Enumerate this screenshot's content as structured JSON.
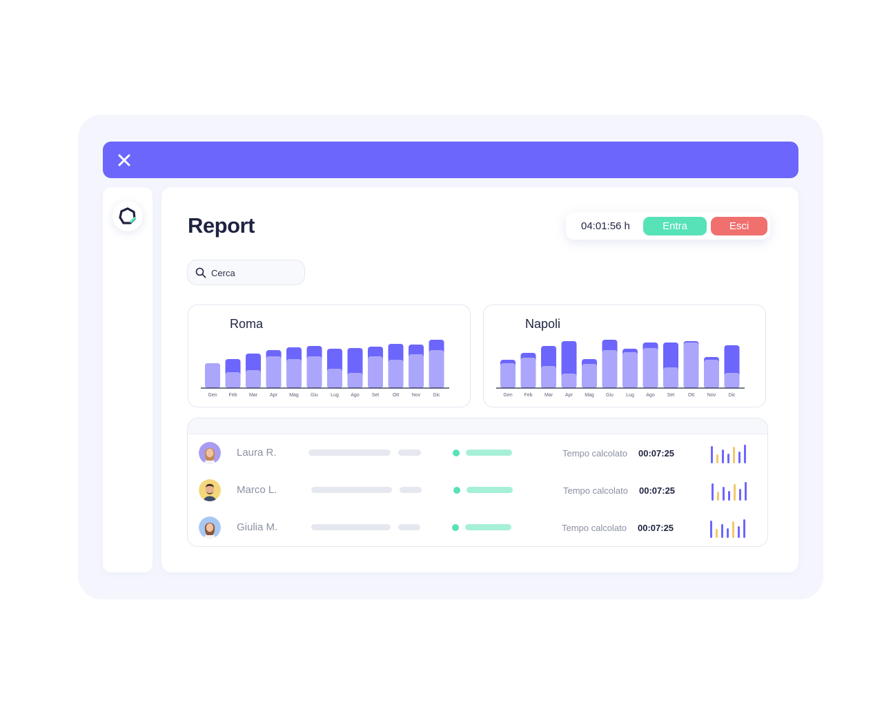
{
  "page": {
    "title": "Report"
  },
  "clock": {
    "time": "04:01:56 h",
    "enter_label": "Entra",
    "exit_label": "Esci"
  },
  "search": {
    "placeholder": "Cerca"
  },
  "colors": {
    "accent": "#6c66fc",
    "bar_light": "#aba6fb",
    "green": "#57e2b8",
    "red": "#f0706e",
    "yellow": "#f2c86a"
  },
  "charts": [
    {
      "title": "Roma"
    },
    {
      "title": "Napoli"
    }
  ],
  "chart_data": [
    {
      "type": "bar",
      "title": "Roma",
      "categories": [
        "Gen",
        "Feb",
        "Mar",
        "Apr",
        "Mag",
        "Giu",
        "Lug",
        "Ago",
        "Set",
        "Ott",
        "Nov",
        "Dic"
      ],
      "series": [
        {
          "values": [
            36,
            23,
            26,
            46,
            42,
            46,
            28,
            22,
            46,
            41,
            49,
            55
          ]
        },
        {
          "values": [
            0,
            19,
            24,
            9,
            17,
            15,
            29,
            36,
            14,
            23,
            14,
            15
          ]
        }
      ],
      "ylim": [
        0,
        75
      ]
    },
    {
      "type": "bar",
      "title": "Napoli",
      "categories": [
        "Gen",
        "Feb",
        "Mar",
        "Apr",
        "Mag",
        "Giu",
        "Lug",
        "Ago",
        "Set",
        "Ott",
        "Nov",
        "Dic"
      ],
      "series": [
        {
          "values": [
            36,
            44,
            32,
            21,
            35,
            55,
            52,
            58,
            30,
            66,
            41,
            22
          ]
        },
        {
          "values": [
            5,
            7,
            29,
            47,
            7,
            15,
            5,
            8,
            36,
            2,
            4,
            40
          ]
        }
      ],
      "ylim": [
        0,
        75
      ]
    }
  ],
  "table": {
    "rows": [
      {
        "name": "Laura R.",
        "tempo_label": "Tempo calcolato",
        "tempo_value": "00:07:25"
      },
      {
        "name": "Marco L.",
        "tempo_label": "Tempo calcolato",
        "tempo_value": "00:07:25"
      },
      {
        "name": "Giulia M.",
        "tempo_label": "Tempo calcolato",
        "tempo_value": "00:07:25"
      }
    ]
  }
}
